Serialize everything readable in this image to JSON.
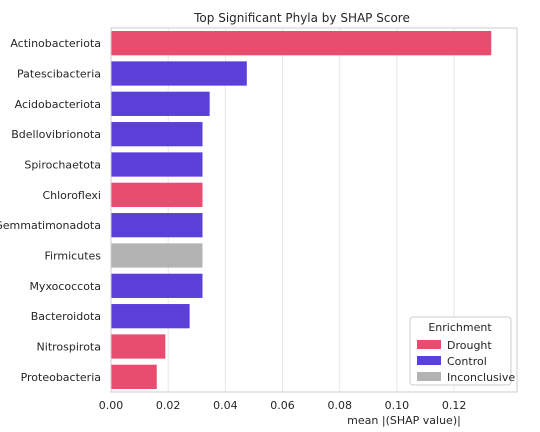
{
  "chart_data": {
    "type": "bar",
    "orientation": "horizontal",
    "title": "Top Significant Phyla by SHAP Score",
    "xlabel": "mean |(SHAP value)|",
    "ylabel": "",
    "xlim": [
      0,
      0.142
    ],
    "xticks": [
      "0.00",
      "0.02",
      "0.04",
      "0.06",
      "0.08",
      "0.10",
      "0.12"
    ],
    "grid": "vertical",
    "categories": [
      "Actinobacteriota",
      "Patescibacteria",
      "Acidobacteriota",
      "Bdellovibrionota",
      "Spirochaetota",
      "Chloroflexi",
      "Gemmatimonadota",
      "Firmicutes",
      "Myxococcota",
      "Bacteroidota",
      "Nitrospirota",
      "Proteobacteria"
    ],
    "values": [
      0.133,
      0.0475,
      0.0345,
      0.032,
      0.032,
      0.032,
      0.032,
      0.032,
      0.032,
      0.0275,
      0.019,
      0.016
    ],
    "enrichment": [
      "Drought",
      "Control",
      "Control",
      "Control",
      "Control",
      "Drought",
      "Control",
      "Inconclusive",
      "Control",
      "Control",
      "Drought",
      "Drought"
    ],
    "legend": {
      "title": "Enrichment",
      "position": "lower-right",
      "entries": [
        {
          "label": "Drought",
          "color": "#e84c6e"
        },
        {
          "label": "Control",
          "color": "#5a3fd8"
        },
        {
          "label": "Inconclusive",
          "color": "#b3b3b3"
        }
      ]
    }
  }
}
